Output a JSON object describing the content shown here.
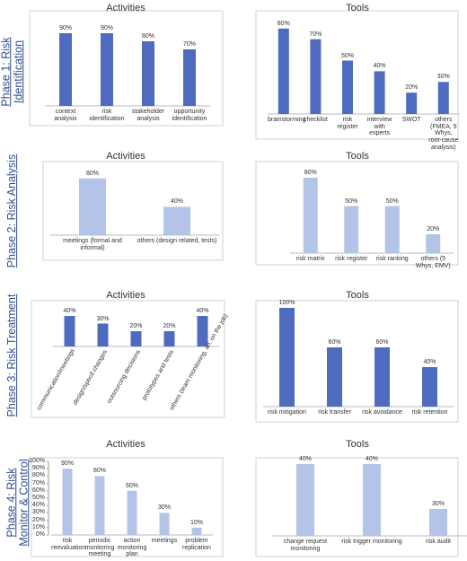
{
  "phases": [
    "Phase 1: Risk Identification",
    "Phase 2: Risk Analysis",
    "Phase 3: Risk Treatment",
    "Phase 4: Risk  Monitor & Control"
  ],
  "chart_data": [
    {
      "type": "bar",
      "title": "Activities",
      "color": "#4f6bbf",
      "ylim": [
        0,
        100
      ],
      "categories": [
        "context analysis",
        "risk identification",
        "stakeholder analysis",
        "opportunity identification"
      ],
      "values": [
        90,
        90,
        80,
        70
      ],
      "value_labels": [
        "90%",
        "90%",
        "80%",
        "70%"
      ]
    },
    {
      "type": "bar",
      "title": "Tools",
      "color": "#4f6bbf",
      "ylim": [
        0,
        100
      ],
      "categories": [
        "brainstorming",
        "checklist",
        "risk register",
        "interview with experts",
        "SWOT",
        "others (FMEA, 5 Whys, root-cause analysis)"
      ],
      "values": [
        80,
        70,
        50,
        40,
        20,
        30
      ],
      "value_labels": [
        "80%",
        "70%",
        "50%",
        "40%",
        "20%",
        "30%"
      ]
    },
    {
      "type": "bar",
      "title": "Activities",
      "color": "#b4c4e8",
      "ylim": [
        0,
        100
      ],
      "categories": [
        "meetings (formal and informal)",
        "others (design related, tests)"
      ],
      "values": [
        80,
        40
      ],
      "value_labels": [
        "80%",
        "40%"
      ]
    },
    {
      "type": "bar",
      "title": "Tools",
      "color": "#b4c4e8",
      "ylim": [
        0,
        100
      ],
      "categories": [
        "risk matrix",
        "risk register",
        "risk ranking",
        "others (5 Whys, EMV)"
      ],
      "values": [
        80,
        50,
        50,
        20
      ],
      "value_labels": [
        "80%",
        "50%",
        "50%",
        "20%"
      ]
    },
    {
      "type": "bar",
      "title": "Activities",
      "color": "#4f6bbf",
      "ylim": [
        0,
        100
      ],
      "categories": [
        "communication/meetings",
        "design/specif.changes",
        "outsourcing decisions",
        "prototypes and tests",
        "others (team monitoring, an. on the job)"
      ],
      "values": [
        40,
        30,
        20,
        20,
        40
      ],
      "value_labels": [
        "40%",
        "30%",
        "20%",
        "20%",
        "40%"
      ]
    },
    {
      "type": "bar",
      "title": "Tools",
      "color": "#4f6bbf",
      "ylim": [
        0,
        100
      ],
      "categories": [
        "risk mitigation",
        "risk transfer",
        "risk avoidance",
        "risk retention"
      ],
      "values": [
        100,
        60,
        60,
        40
      ],
      "value_labels": [
        "100%",
        "60%",
        "60%",
        "40%"
      ]
    },
    {
      "type": "bar",
      "title": "Activities",
      "color": "#b4c4e8",
      "ylim": [
        0,
        100
      ],
      "yticks": [
        {
          "value": 0,
          "label": "0%"
        },
        {
          "value": 10,
          "label": "10%"
        },
        {
          "value": 20,
          "label": "20%"
        },
        {
          "value": 30,
          "label": "30%"
        },
        {
          "value": 40,
          "label": "40%"
        },
        {
          "value": 50,
          "label": "50%"
        },
        {
          "value": 60,
          "label": "60%"
        },
        {
          "value": 70,
          "label": "70%"
        },
        {
          "value": 80,
          "label": "80%"
        },
        {
          "value": 90,
          "label": "90%"
        },
        {
          "value": 100,
          "label": "100%"
        }
      ],
      "categories": [
        "risk reevaluation",
        "periodic monitoring meeting",
        "action monitoring plan",
        "meetings",
        "problem replication"
      ],
      "values": [
        90,
        80,
        60,
        30,
        10
      ],
      "value_labels": [
        "90%",
        "80%",
        "60%",
        "30%",
        "10%"
      ]
    },
    {
      "type": "bar",
      "title": "Tools",
      "color": "#b4c4e8",
      "ylim": [
        24,
        41
      ],
      "categories": [
        "change request monitoring",
        "risk trigger monitoring",
        "risk audit"
      ],
      "values": [
        40,
        40,
        30
      ],
      "value_labels": [
        "40%",
        "40%",
        "30%"
      ]
    }
  ]
}
